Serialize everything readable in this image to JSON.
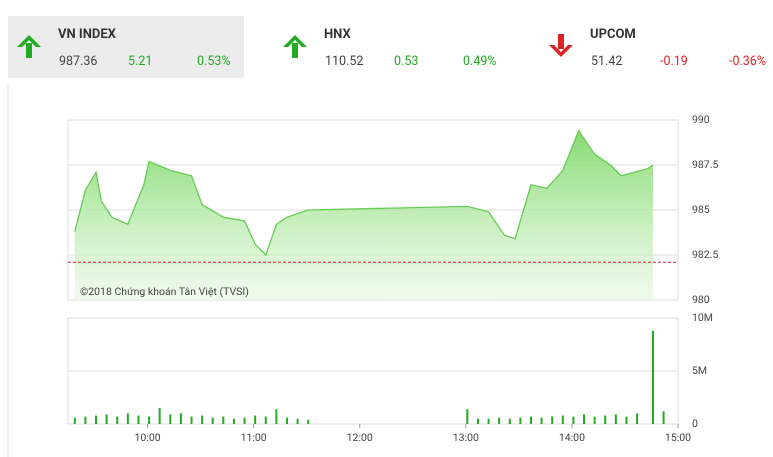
{
  "header": {
    "indices": [
      {
        "name": "VN INDEX",
        "value": "987.36",
        "change": "5.21",
        "percent": "0.53%",
        "direction": "up"
      },
      {
        "name": "HNX",
        "value": "110.52",
        "change": "0.53",
        "percent": "0.49%",
        "direction": "up"
      },
      {
        "name": "UPCOM",
        "value": "51.42",
        "change": "-0.19",
        "percent": "-0.36%",
        "direction": "down"
      }
    ]
  },
  "chart_data": [
    {
      "type": "area",
      "annotation": "©2018 Chứng khoán Tân Việt (TVSI)",
      "color": "#66cc55",
      "reference": 982.1,
      "reference_color": "#cc2222",
      "xlim": [
        9.25,
        15
      ],
      "ylim": [
        980,
        990
      ],
      "yticks": [
        980,
        982.5,
        985,
        987.5,
        990
      ],
      "grid": true,
      "x": [
        9.3,
        9.4,
        9.5,
        9.55,
        9.65,
        9.8,
        9.95,
        10.0,
        10.2,
        10.4,
        10.5,
        10.7,
        10.9,
        11.0,
        11.1,
        11.2,
        11.3,
        11.5,
        13.0,
        13.2,
        13.35,
        13.45,
        13.6,
        13.75,
        13.9,
        14.05,
        14.2,
        14.35,
        14.45,
        14.7,
        14.75
      ],
      "values": [
        983.8,
        986.1,
        987.1,
        985.5,
        984.6,
        984.2,
        986.4,
        987.7,
        987.2,
        986.9,
        985.3,
        984.6,
        984.4,
        983.1,
        982.5,
        984.2,
        984.6,
        985.0,
        985.2,
        984.9,
        983.6,
        983.4,
        986.4,
        986.2,
        987.2,
        989.4,
        988.1,
        987.5,
        986.9,
        987.3,
        987.5
      ]
    },
    {
      "type": "bar",
      "color": "#22aa22",
      "xlim": [
        9.25,
        15
      ],
      "ylim": [
        0,
        10000000
      ],
      "yticks": [
        0,
        {
          "value": 5000000,
          "label": "5M"
        },
        {
          "value": 10000000,
          "label": "10M"
        }
      ],
      "xticks": [
        {
          "value": 10,
          "label": "10:00"
        },
        {
          "value": 11,
          "label": "11:00"
        },
        {
          "value": 12,
          "label": "12:00"
        },
        {
          "value": 13,
          "label": "13:00"
        },
        {
          "value": 14,
          "label": "14:00"
        },
        {
          "value": 15,
          "label": "15:00"
        }
      ],
      "grid": true,
      "x": [
        9.3,
        9.4,
        9.5,
        9.6,
        9.7,
        9.8,
        9.9,
        10.0,
        10.1,
        10.2,
        10.3,
        10.4,
        10.5,
        10.6,
        10.7,
        10.8,
        10.9,
        11.0,
        11.1,
        11.2,
        11.3,
        11.4,
        11.5,
        13.0,
        13.1,
        13.2,
        13.3,
        13.4,
        13.5,
        13.6,
        13.7,
        13.8,
        13.9,
        14.0,
        14.1,
        14.2,
        14.3,
        14.4,
        14.5,
        14.6,
        14.75,
        14.85
      ],
      "values": [
        600000,
        700000,
        800000,
        900000,
        700000,
        1000000,
        800000,
        700000,
        1500000,
        900000,
        1000000,
        700000,
        800000,
        600000,
        700000,
        500000,
        600000,
        800000,
        700000,
        1400000,
        600000,
        500000,
        400000,
        1400000,
        500000,
        500000,
        600000,
        500000,
        600000,
        700000,
        600000,
        700000,
        800000,
        700000,
        900000,
        700000,
        800000,
        900000,
        700000,
        1000000,
        8800000,
        1200000
      ]
    }
  ]
}
